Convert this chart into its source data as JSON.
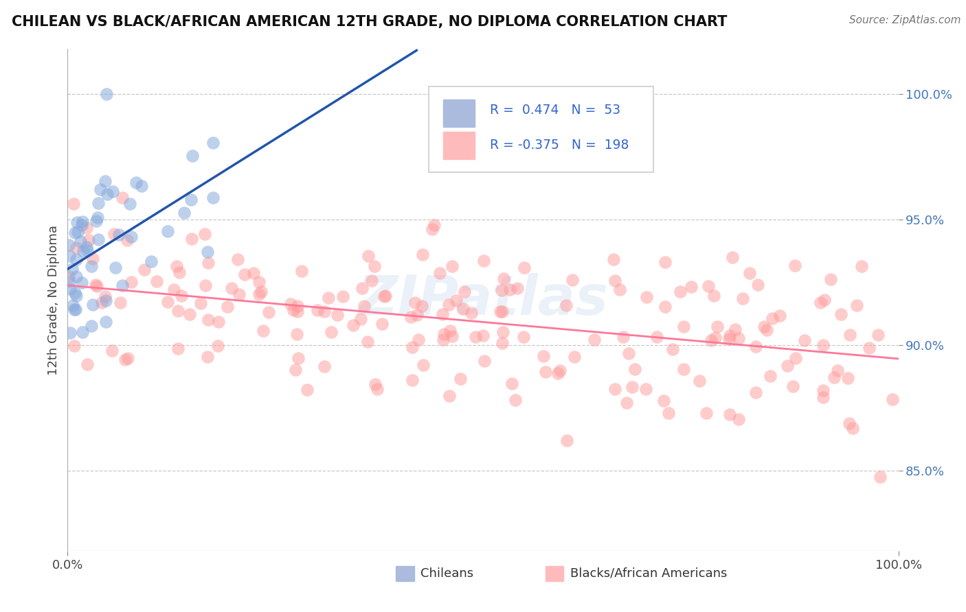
{
  "title": "CHILEAN VS BLACK/AFRICAN AMERICAN 12TH GRADE, NO DIPLOMA CORRELATION CHART",
  "source": "Source: ZipAtlas.com",
  "ylabel": "12th Grade, No Diploma",
  "legend_label1": "Chileans",
  "legend_label2": "Blacks/African Americans",
  "R1": 0.474,
  "N1": 53,
  "R2": -0.375,
  "N2": 198,
  "blue_color": "#88AADD",
  "pink_color": "#FF9999",
  "blue_line_color": "#2255AA",
  "pink_line_color": "#FF7799",
  "watermark": "ZIPatlas",
  "xlim": [
    0.0,
    1.0
  ],
  "ylim": [
    0.818,
    1.018
  ],
  "y_ticks": [
    0.85,
    0.9,
    0.95,
    1.0
  ],
  "y_tick_labels": [
    "85.0%",
    "90.0%",
    "95.0%",
    "100.0%"
  ],
  "blue_seed": 42,
  "pink_seed": 7,
  "title_fontsize": 15,
  "source_fontsize": 11,
  "tick_fontsize": 13,
  "ylabel_fontsize": 13
}
